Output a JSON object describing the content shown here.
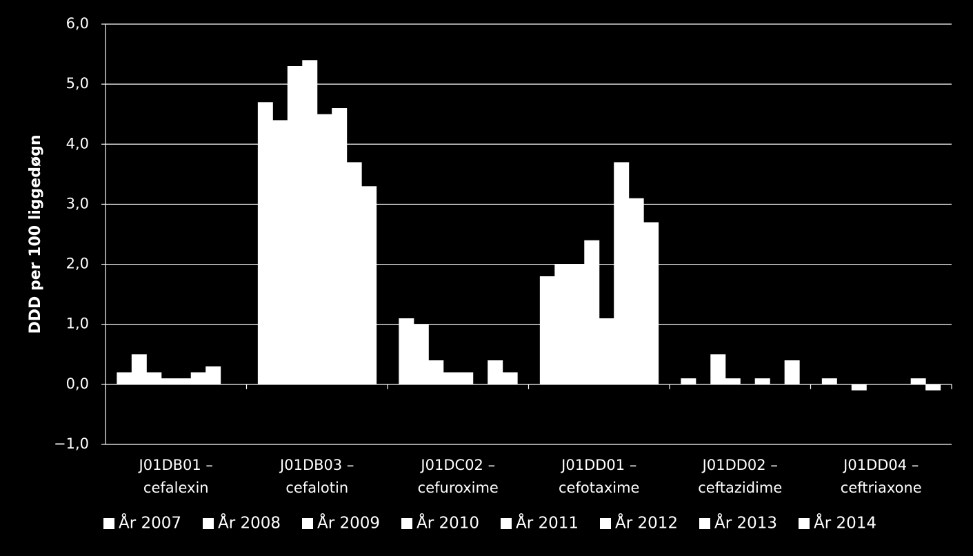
{
  "chart_data": {
    "type": "bar",
    "y_label": "DDD per 100 liggedøgn",
    "categories": [
      [
        "J01DB01 –",
        "cefalexin"
      ],
      [
        "J01DB03 –",
        "cefalotin"
      ],
      [
        "J01DC02 –",
        "cefuroxime"
      ],
      [
        "J01DD01 –",
        "cefotaxime"
      ],
      [
        "J01DD02 –",
        "ceftazidime"
      ],
      [
        "J01DD04 –",
        "ceftriaxone"
      ]
    ],
    "series": [
      {
        "name": "År 2007",
        "color": "#ffffff",
        "values": [
          0.2,
          4.7,
          1.1,
          1.8,
          0.1,
          0.1
        ]
      },
      {
        "name": "År 2008",
        "color": "#ffffff",
        "values": [
          0.5,
          4.4,
          1.0,
          2.0,
          0,
          0
        ]
      },
      {
        "name": "År 2009",
        "color": "#ffffff",
        "values": [
          0.2,
          5.3,
          0.4,
          2.0,
          0.5,
          -0.1
        ]
      },
      {
        "name": "År 2010",
        "color": "#ffffff",
        "values": [
          0.1,
          5.4,
          0.2,
          2.4,
          0.1,
          0
        ]
      },
      {
        "name": "År 2011",
        "color": "#ffffff",
        "values": [
          0.1,
          4.5,
          0.2,
          1.1,
          0,
          0
        ]
      },
      {
        "name": "År 2012",
        "color": "#ffffff",
        "values": [
          0.2,
          4.6,
          0,
          3.7,
          0.1,
          0
        ]
      },
      {
        "name": "År 2013",
        "color": "#ffffff",
        "values": [
          0.3,
          3.7,
          0.4,
          3.1,
          0,
          0.1
        ]
      },
      {
        "name": "År 2014",
        "color": "#ffffff",
        "values": [
          0,
          3.3,
          0.2,
          2.7,
          0.4,
          -0.1
        ]
      }
    ],
    "ylim": [
      -1,
      6
    ],
    "yticks": [
      {
        "value": -1,
        "label": "−1,0"
      },
      {
        "value": 0,
        "label": "0,0"
      },
      {
        "value": 1,
        "label": "1,0"
      },
      {
        "value": 2,
        "label": "2,0"
      },
      {
        "value": 3,
        "label": "3,0"
      },
      {
        "value": 4,
        "label": "4,0"
      },
      {
        "value": 5,
        "label": "5,0"
      },
      {
        "value": 6,
        "label": "6,0"
      }
    ],
    "grid": true,
    "legend": "bottom"
  }
}
